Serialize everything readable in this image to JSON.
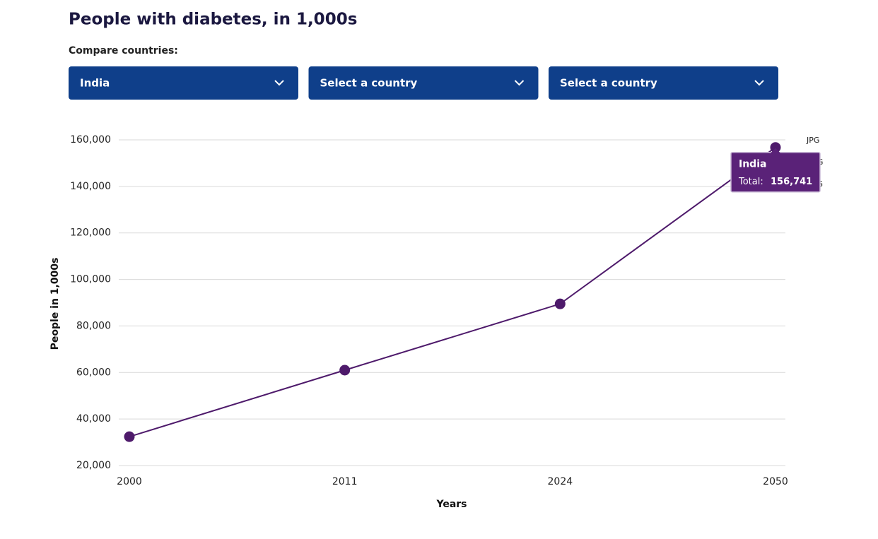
{
  "controls": {
    "label": "Compare countries:",
    "dropdowns": [
      "India",
      "Select a country",
      "Select a country"
    ]
  },
  "export_menu": [
    "JPG",
    "PNG",
    "SVG"
  ],
  "chart_data": {
    "type": "line",
    "title": "People with diabetes, in 1,000s",
    "x_label": "Years",
    "y_label": "People in 1,000s",
    "categories": [
      "2000",
      "2011",
      "2024",
      "2050"
    ],
    "series": [
      {
        "name": "India",
        "color": "#4e1a6b",
        "values": [
          32400,
          61000,
          89500,
          156741
        ]
      }
    ],
    "ylim": [
      20000,
      160000
    ],
    "yticks": [
      {
        "value": 20000,
        "label": "20,000"
      },
      {
        "value": 40000,
        "label": "40,000"
      },
      {
        "value": 60000,
        "label": "60,000"
      },
      {
        "value": 80000,
        "label": "80,000"
      },
      {
        "value": 100000,
        "label": "100,000"
      },
      {
        "value": 120000,
        "label": "120,000"
      },
      {
        "value": 140000,
        "label": "140,000"
      },
      {
        "value": 160000,
        "label": "160,000"
      }
    ],
    "grid": true,
    "tooltip": {
      "label": "Total:",
      "value": "156,741"
    }
  }
}
